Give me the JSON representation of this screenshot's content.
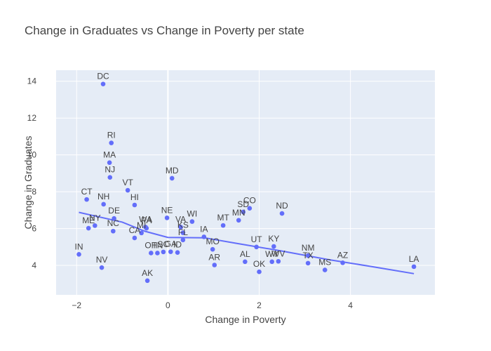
{
  "chart_data": {
    "type": "scatter",
    "title": "Change in Graduates vs Change in Poverty per state",
    "xlabel": "Change in Poverty",
    "ylabel": "Change in Graduates",
    "xlim": [
      -2.45,
      5.85
    ],
    "ylim": [
      2.4,
      14.6
    ],
    "x_ticks": [
      -2,
      0,
      2,
      4
    ],
    "y_ticks": [
      4,
      6,
      8,
      10,
      12,
      14
    ],
    "grid": true,
    "legend": "none",
    "colors": {
      "marker": "#636efa",
      "plot_bg": "#e5ecf6",
      "grid": "#ffffff",
      "text": "#444444",
      "trend": "#636efa"
    },
    "points": [
      {
        "label": "DC",
        "x": -1.42,
        "y": 13.85
      },
      {
        "label": "RI",
        "x": -1.24,
        "y": 10.65
      },
      {
        "label": "MA",
        "x": -1.28,
        "y": 9.58
      },
      {
        "label": "NJ",
        "x": -1.27,
        "y": 8.78
      },
      {
        "label": "VT",
        "x": -0.88,
        "y": 8.08
      },
      {
        "label": "MD",
        "x": 0.09,
        "y": 8.73
      },
      {
        "label": "CT",
        "x": -1.78,
        "y": 7.58
      },
      {
        "label": "NH",
        "x": -1.41,
        "y": 7.32
      },
      {
        "label": "HI",
        "x": -0.73,
        "y": 7.28
      },
      {
        "label": "DE",
        "x": -1.18,
        "y": 6.55
      },
      {
        "label": "ME",
        "x": -1.74,
        "y": 6.02
      },
      {
        "label": "NY",
        "x": -1.6,
        "y": 6.16
      },
      {
        "label": "NC",
        "x": -1.2,
        "y": 5.86
      },
      {
        "label": "NE",
        "x": -0.02,
        "y": 6.58
      },
      {
        "label": "WA",
        "x": -0.49,
        "y": 6.08
      },
      {
        "label": "PA",
        "x": -0.47,
        "y": 6.02
      },
      {
        "label": "MI",
        "x": -0.58,
        "y": 5.76
      },
      {
        "label": "CA",
        "x": -0.73,
        "y": 5.49
      },
      {
        "label": "WI",
        "x": 0.53,
        "y": 6.38
      },
      {
        "label": "VA",
        "x": 0.28,
        "y": 6.08
      },
      {
        "label": "KS",
        "x": 0.33,
        "y": 5.77
      },
      {
        "label": "FL",
        "x": 0.33,
        "y": 5.38
      },
      {
        "label": "IA",
        "x": 0.79,
        "y": 5.55
      },
      {
        "label": "MT",
        "x": 1.21,
        "y": 6.17
      },
      {
        "label": "MN",
        "x": 1.55,
        "y": 6.45
      },
      {
        "label": "SD",
        "x": 1.65,
        "y": 6.9
      },
      {
        "label": "CO",
        "x": 1.79,
        "y": 7.1
      },
      {
        "label": "ND",
        "x": 2.5,
        "y": 6.82
      },
      {
        "label": "IN",
        "x": -1.95,
        "y": 4.6
      },
      {
        "label": "NV",
        "x": -1.45,
        "y": 3.88
      },
      {
        "label": "OH",
        "x": -0.37,
        "y": 4.67
      },
      {
        "label": "TN",
        "x": -0.23,
        "y": 4.67
      },
      {
        "label": "SC",
        "x": -0.1,
        "y": 4.73
      },
      {
        "label": "GA",
        "x": 0.06,
        "y": 4.74
      },
      {
        "label": "ID",
        "x": 0.21,
        "y": 4.7
      },
      {
        "label": "AK",
        "x": -0.45,
        "y": 3.17
      },
      {
        "label": "MO",
        "x": 0.98,
        "y": 4.87
      },
      {
        "label": "AR",
        "x": 1.02,
        "y": 4.02
      },
      {
        "label": "AL",
        "x": 1.69,
        "y": 4.2
      },
      {
        "label": "UT",
        "x": 1.94,
        "y": 5.0
      },
      {
        "label": "OK",
        "x": 2.0,
        "y": 3.65
      },
      {
        "label": "KY",
        "x": 2.32,
        "y": 5.03
      },
      {
        "label": "WY",
        "x": 2.28,
        "y": 4.2
      },
      {
        "label": "WV",
        "x": 2.42,
        "y": 4.22
      },
      {
        "label": "NM",
        "x": 3.07,
        "y": 4.53
      },
      {
        "label": "TX",
        "x": 3.07,
        "y": 4.12
      },
      {
        "label": "MS",
        "x": 3.44,
        "y": 3.75
      },
      {
        "label": "AZ",
        "x": 3.83,
        "y": 4.14
      },
      {
        "label": "LA",
        "x": 5.39,
        "y": 3.93
      }
    ],
    "trendline": [
      {
        "x": -1.95,
        "y": 6.88
      },
      {
        "x": -1.0,
        "y": 6.35
      },
      {
        "x": -0.5,
        "y": 5.85
      },
      {
        "x": 0.0,
        "y": 5.52
      },
      {
        "x": 0.8,
        "y": 5.5
      },
      {
        "x": 1.5,
        "y": 5.2
      },
      {
        "x": 2.5,
        "y": 4.78
      },
      {
        "x": 3.5,
        "y": 4.32
      },
      {
        "x": 4.5,
        "y": 3.92
      },
      {
        "x": 5.39,
        "y": 3.55
      }
    ]
  }
}
